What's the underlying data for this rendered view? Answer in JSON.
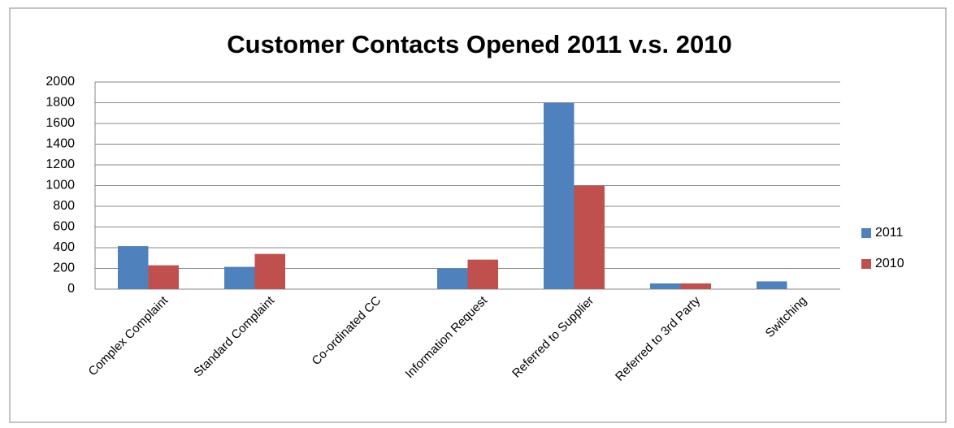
{
  "chart_data": {
    "type": "bar",
    "title": "Customer Contacts Opened 2011 v.s. 2010",
    "categories": [
      "Complex Complaint",
      "Standard Complaint",
      "Co-ordinated CC",
      "Information Request",
      "Referred to Supplier",
      "Referred to 3rd Party",
      "Switching"
    ],
    "series": [
      {
        "name": "2011",
        "color": "#4f81bd",
        "values": [
          415,
          215,
          0,
          200,
          1800,
          55,
          75
        ]
      },
      {
        "name": "2010",
        "color": "#c0504d",
        "values": [
          230,
          340,
          0,
          285,
          1000,
          55,
          0
        ]
      }
    ],
    "ylim": [
      0,
      2000
    ],
    "yticks": [
      0,
      200,
      400,
      600,
      800,
      1000,
      1200,
      1400,
      1600,
      1800,
      2000
    ],
    "grid": true,
    "legend": "right"
  }
}
